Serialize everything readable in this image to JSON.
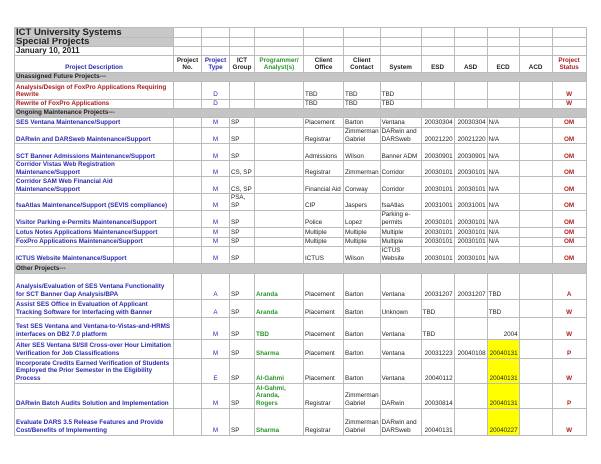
{
  "title": "ICT University Systems",
  "subtitle": "Special Projects",
  "date": "January 10, 2011",
  "colors": {
    "title": "#2b2ba0",
    "subtitle": "#2a962a",
    "description_blue": "#2b2bb0",
    "description_red": "#a81e1e",
    "status": "#b02020",
    "section_bg": "#c4c4c4",
    "highlight": "#ffff00"
  },
  "headers": [
    "Project Description",
    "Project No.",
    "Project Type",
    "ICT Group",
    "Programmer/ Analyst(s)",
    "Client Office",
    "Client Contact",
    "System",
    "ESD",
    "ASD",
    "ECD",
    "ACD",
    "Project Status"
  ],
  "rows": [
    {
      "section": "Unassigned Future Projects---"
    },
    {
      "desc": "Analysis/Design of FoxPro Applications Requiring Rewrite",
      "red": true,
      "no": "",
      "type": "D",
      "group": "",
      "prog": "",
      "office": "TBD",
      "contact": "TBD",
      "system": "TBD",
      "esd": "",
      "asd": "",
      "ecd": "",
      "acd": "",
      "status": "W"
    },
    {
      "desc": "Rewrite of FoxPro Applications",
      "red": true,
      "no": "",
      "type": "D",
      "group": "",
      "prog": "",
      "office": "TBD",
      "contact": "TBD",
      "system": "TBD",
      "esd": "",
      "asd": "",
      "ecd": "",
      "acd": "",
      "status": "W"
    },
    {
      "section": "Ongoing Maintenance Projects---"
    },
    {
      "desc": "SES Ventana Maintenance/Support",
      "no": "",
      "type": "M",
      "group": "SP",
      "prog": "",
      "office": "Placement",
      "contact": "Barton",
      "system": "Ventana",
      "esd": "20030304",
      "asd": "20030304",
      "ecd": "N/A",
      "acd": "",
      "status": "OM"
    },
    {
      "desc": "DARwin and DARSweb Maintenance/Support",
      "no": "",
      "type": "M",
      "group": "SP",
      "prog": "",
      "office": "Registrar",
      "contact": "Zimmerman Gabriel",
      "system": "DARwin and DARSweb",
      "esd": "20021220",
      "asd": "20021220",
      "ecd": "N/A",
      "acd": "",
      "status": "OM"
    },
    {
      "desc": "SCT Banner Admissions Maintenance/Support",
      "no": "",
      "type": "M",
      "group": "SP",
      "prog": "",
      "office": "Admissions",
      "contact": "Wilson",
      "system": "Banner ADM",
      "esd": "20030901",
      "asd": "20030901",
      "ecd": "N/A",
      "acd": "",
      "status": "OM"
    },
    {
      "desc": "Corridor Vistas Web Registration Maintenance/Support",
      "no": "",
      "type": "M",
      "group": "CS, SP",
      "prog": "",
      "office": "Registrar",
      "contact": "Zimmerman",
      "system": "Corridor",
      "esd": "20030101",
      "asd": "20030101",
      "ecd": "N/A",
      "acd": "",
      "status": "OM"
    },
    {
      "desc": "Corridor SAM Web Financial Aid Maintenance/Support",
      "no": "",
      "type": "M",
      "group": "CS, SP",
      "prog": "",
      "office": "Financial Aid",
      "contact": "Conway",
      "system": "Corridor",
      "esd": "20030101",
      "asd": "20030101",
      "ecd": "N/A",
      "acd": "",
      "status": "OM"
    },
    {
      "desc": "fsaAtlas Maintenance/Support (SEVIS compliance)",
      "no": "",
      "type": "M",
      "group": "PSA, SP",
      "prog": "",
      "office": "CIP",
      "contact": "Jaspers",
      "system": "fsaAtlas",
      "esd": "20031001",
      "asd": "20031001",
      "ecd": "N/A",
      "acd": "",
      "status": "OM"
    },
    {
      "desc": "Visitor Parking e-Permits Maintenance/Support",
      "no": "",
      "type": "M",
      "group": "SP",
      "prog": "",
      "office": "Police",
      "contact": "Lopez",
      "system": "Parking e-permits",
      "esd": "20030101",
      "asd": "20030101",
      "ecd": "N/A",
      "acd": "",
      "status": "OM"
    },
    {
      "desc": "Lotus Notes Applications Maintenance/Support",
      "no": "",
      "type": "M",
      "group": "SP",
      "prog": "",
      "office": "Multiple",
      "contact": "Multiple",
      "system": "Multiple",
      "esd": "20030101",
      "asd": "20030101",
      "ecd": "N/A",
      "acd": "",
      "status": "OM"
    },
    {
      "desc": "FoxPro Applications Maintenance/Support",
      "no": "",
      "type": "M",
      "group": "SP",
      "prog": "",
      "office": "Multiple",
      "contact": "Multiple",
      "system": "Multiple",
      "esd": "20030101",
      "asd": "20030101",
      "ecd": "N/A",
      "acd": "",
      "status": "OM"
    },
    {
      "desc": "ICTUS Website Maintenance/Support",
      "no": "",
      "type": "M",
      "group": "SP",
      "prog": "",
      "office": "ICTUS",
      "contact": "Wilson",
      "system": "ICTUS Website",
      "esd": "20030101",
      "asd": "20030101",
      "ecd": "N/A",
      "acd": "",
      "status": "OM"
    },
    {
      "section": "Other Projects---"
    },
    {
      "desc": "Analysis/Evaluation of SES Ventana Functionality for SCT Banner Gap Analysis/BPA",
      "no": "",
      "type": "A",
      "group": "SP",
      "prog": "Aranda",
      "office": "Placement",
      "contact": "Barton",
      "system": "Ventana",
      "esd": "20031207",
      "asd": "20031207",
      "ecd": "TBD",
      "acd": "",
      "status": "A"
    },
    {
      "desc": "Assist SES Office in Evaluation of Applicant Tracking Software for Interfacing with Banner",
      "no": "",
      "type": "A",
      "group": "SP",
      "prog": "Aranda",
      "office": "Placement",
      "contact": "Barton",
      "system": "Unknown",
      "esd": "TBD",
      "asd": "",
      "ecd": "TBD",
      "acd": "",
      "status": "W"
    },
    {
      "desc": "Test SES Ventana and Ventana-to-Vistas-and-HRMS interfaces on DB2 7.0 platform",
      "no": "",
      "type": "M",
      "group": "SP",
      "prog": "TBD",
      "office": "Placement",
      "contact": "Barton",
      "system": "Ventana",
      "esd": "TBD",
      "asd": "",
      "ecd": "2004",
      "ecdRight": true,
      "acd": "",
      "status": "W"
    },
    {
      "desc": "Alter SES Ventana SI/SII Cross-over Hour Limitation Verification for Job Classifications",
      "no": "",
      "type": "M",
      "group": "SP",
      "prog": "Sharma",
      "office": "Placement",
      "contact": "Barton",
      "system": "Ventana",
      "esd": "20031223",
      "asd": "20040108",
      "ecd": "20040131",
      "hl": true,
      "acd": "",
      "status": "P"
    },
    {
      "desc": "Incorporate Credits Earned Verification of Students Employed the Prior Semester in the Eligibility Process",
      "no": "",
      "type": "E",
      "group": "SP",
      "prog": "Al-Gahmi",
      "office": "Placement",
      "contact": "Barton",
      "system": "Ventana",
      "esd": "20040112",
      "asd": "",
      "ecd": "20040131",
      "hl": true,
      "acd": "",
      "status": "W"
    },
    {
      "desc": "DARwin Batch Audits Solution and Implementation",
      "no": "",
      "type": "M",
      "group": "SP",
      "prog": "Al-Gahmi, Aranda, Rogers",
      "office": "Registrar",
      "contact": "Zimmerman Gabriel",
      "system": "DARwin",
      "esd": "20030814",
      "asd": "",
      "ecd": "20040131",
      "hl": true,
      "acd": "",
      "status": "P"
    },
    {
      "desc": "Evaluate DARS 3.5 Release Features and Provide Cost/Benefits of Implementing",
      "no": "",
      "type": "M",
      "group": "SP",
      "prog": "Sharma",
      "office": "Registrar",
      "contact": "Zimmerman Gabriel",
      "system": "DARwin and DARSweb",
      "esd": "20040131",
      "asd": "",
      "ecd": "20040227",
      "hl": true,
      "acd": "",
      "status": "W"
    }
  ]
}
